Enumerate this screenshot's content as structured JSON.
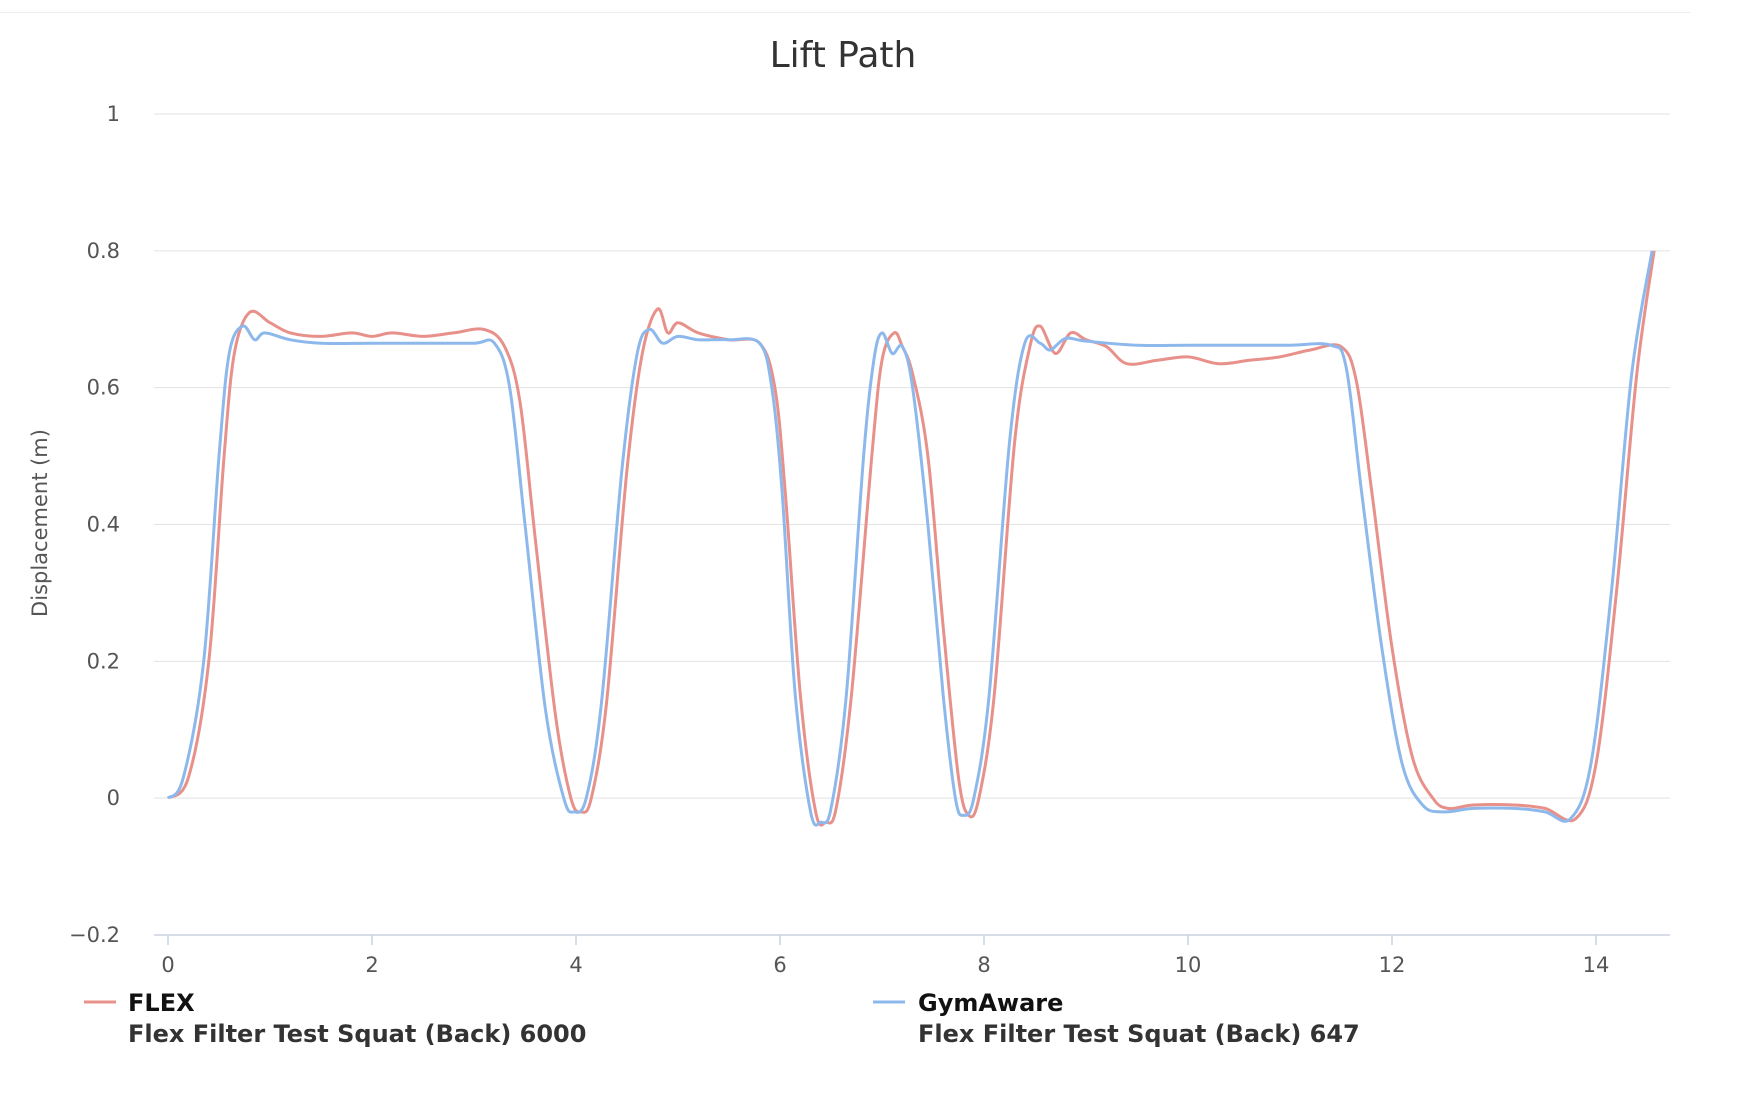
{
  "chart_data": {
    "type": "line",
    "title": "Lift Path",
    "xlabel": "",
    "ylabel": "Displacement (m)",
    "xlim": [
      0,
      14.6
    ],
    "ylim": [
      -0.2,
      1
    ],
    "x_ticks": [
      "0",
      "2",
      "4",
      "6",
      "8",
      "10",
      "12",
      "14"
    ],
    "y_ticks": [
      "−0.2",
      "0",
      "0.2",
      "0.4",
      "0.6",
      "0.8",
      "1"
    ],
    "grid": true,
    "legend": "bottom",
    "series": [
      {
        "name": "FLEX",
        "subtitle": "Flex Filter Test Squat (Back) 6000",
        "color": "#e8908a",
        "points": [
          [
            0,
            0
          ],
          [
            0.2,
            0.03
          ],
          [
            0.4,
            0.2
          ],
          [
            0.55,
            0.5
          ],
          [
            0.65,
            0.65
          ],
          [
            0.8,
            0.71
          ],
          [
            1.0,
            0.695
          ],
          [
            1.2,
            0.68
          ],
          [
            1.5,
            0.675
          ],
          [
            1.8,
            0.68
          ],
          [
            2.0,
            0.675
          ],
          [
            2.2,
            0.68
          ],
          [
            2.5,
            0.675
          ],
          [
            2.8,
            0.68
          ],
          [
            3.1,
            0.685
          ],
          [
            3.3,
            0.66
          ],
          [
            3.45,
            0.58
          ],
          [
            3.6,
            0.38
          ],
          [
            3.8,
            0.12
          ],
          [
            3.95,
            0.0
          ],
          [
            4.05,
            -0.02
          ],
          [
            4.15,
            0.0
          ],
          [
            4.3,
            0.14
          ],
          [
            4.5,
            0.48
          ],
          [
            4.65,
            0.65
          ],
          [
            4.8,
            0.715
          ],
          [
            4.9,
            0.68
          ],
          [
            5.0,
            0.695
          ],
          [
            5.2,
            0.68
          ],
          [
            5.5,
            0.67
          ],
          [
            5.8,
            0.665
          ],
          [
            5.95,
            0.6
          ],
          [
            6.05,
            0.45
          ],
          [
            6.2,
            0.15
          ],
          [
            6.35,
            -0.02
          ],
          [
            6.45,
            -0.035
          ],
          [
            6.55,
            -0.015
          ],
          [
            6.7,
            0.15
          ],
          [
            6.9,
            0.5
          ],
          [
            7.0,
            0.64
          ],
          [
            7.12,
            0.68
          ],
          [
            7.2,
            0.66
          ],
          [
            7.3,
            0.62
          ],
          [
            7.45,
            0.5
          ],
          [
            7.6,
            0.25
          ],
          [
            7.75,
            0.03
          ],
          [
            7.85,
            -0.025
          ],
          [
            7.95,
            0.0
          ],
          [
            8.1,
            0.15
          ],
          [
            8.3,
            0.52
          ],
          [
            8.45,
            0.66
          ],
          [
            8.55,
            0.69
          ],
          [
            8.7,
            0.65
          ],
          [
            8.85,
            0.68
          ],
          [
            9.0,
            0.67
          ],
          [
            9.2,
            0.66
          ],
          [
            9.4,
            0.635
          ],
          [
            9.7,
            0.64
          ],
          [
            10.0,
            0.645
          ],
          [
            10.3,
            0.635
          ],
          [
            10.6,
            0.64
          ],
          [
            10.9,
            0.645
          ],
          [
            11.2,
            0.655
          ],
          [
            11.5,
            0.66
          ],
          [
            11.65,
            0.61
          ],
          [
            11.8,
            0.45
          ],
          [
            12.0,
            0.22
          ],
          [
            12.2,
            0.06
          ],
          [
            12.4,
            0.0
          ],
          [
            12.55,
            -0.015
          ],
          [
            12.8,
            -0.01
          ],
          [
            13.2,
            -0.01
          ],
          [
            13.5,
            -0.015
          ],
          [
            13.8,
            -0.03
          ],
          [
            14.0,
            0.05
          ],
          [
            14.2,
            0.3
          ],
          [
            14.4,
            0.62
          ],
          [
            14.57,
            0.8
          ]
        ]
      },
      {
        "name": "GymAware",
        "subtitle": "Flex Filter Test Squat (Back) 647",
        "color": "#8db8ec",
        "points": [
          [
            0,
            0
          ],
          [
            0.15,
            0.03
          ],
          [
            0.35,
            0.2
          ],
          [
            0.5,
            0.5
          ],
          [
            0.6,
            0.65
          ],
          [
            0.73,
            0.69
          ],
          [
            0.85,
            0.67
          ],
          [
            0.95,
            0.68
          ],
          [
            1.2,
            0.67
          ],
          [
            1.5,
            0.665
          ],
          [
            2.0,
            0.665
          ],
          [
            2.5,
            0.665
          ],
          [
            3.0,
            0.665
          ],
          [
            3.2,
            0.665
          ],
          [
            3.35,
            0.6
          ],
          [
            3.5,
            0.4
          ],
          [
            3.7,
            0.13
          ],
          [
            3.88,
            0.0
          ],
          [
            3.98,
            -0.02
          ],
          [
            4.1,
            0.0
          ],
          [
            4.25,
            0.14
          ],
          [
            4.45,
            0.48
          ],
          [
            4.6,
            0.65
          ],
          [
            4.72,
            0.685
          ],
          [
            4.85,
            0.665
          ],
          [
            5.0,
            0.675
          ],
          [
            5.2,
            0.67
          ],
          [
            5.5,
            0.67
          ],
          [
            5.8,
            0.665
          ],
          [
            5.92,
            0.6
          ],
          [
            6.02,
            0.45
          ],
          [
            6.15,
            0.15
          ],
          [
            6.3,
            -0.02
          ],
          [
            6.4,
            -0.035
          ],
          [
            6.5,
            -0.015
          ],
          [
            6.65,
            0.15
          ],
          [
            6.82,
            0.5
          ],
          [
            6.92,
            0.64
          ],
          [
            7.0,
            0.68
          ],
          [
            7.1,
            0.65
          ],
          [
            7.2,
            0.66
          ],
          [
            7.3,
            0.6
          ],
          [
            7.45,
            0.4
          ],
          [
            7.6,
            0.15
          ],
          [
            7.72,
            0.0
          ],
          [
            7.8,
            -0.025
          ],
          [
            7.9,
            0.0
          ],
          [
            8.05,
            0.15
          ],
          [
            8.25,
            0.52
          ],
          [
            8.4,
            0.665
          ],
          [
            8.55,
            0.665
          ],
          [
            8.65,
            0.655
          ],
          [
            8.8,
            0.672
          ],
          [
            9.0,
            0.668
          ],
          [
            9.5,
            0.662
          ],
          [
            10.0,
            0.662
          ],
          [
            10.5,
            0.662
          ],
          [
            11.0,
            0.662
          ],
          [
            11.4,
            0.662
          ],
          [
            11.55,
            0.63
          ],
          [
            11.7,
            0.45
          ],
          [
            11.9,
            0.22
          ],
          [
            12.1,
            0.05
          ],
          [
            12.3,
            -0.01
          ],
          [
            12.5,
            -0.02
          ],
          [
            12.8,
            -0.015
          ],
          [
            13.2,
            -0.015
          ],
          [
            13.5,
            -0.02
          ],
          [
            13.75,
            -0.03
          ],
          [
            13.95,
            0.05
          ],
          [
            14.15,
            0.3
          ],
          [
            14.35,
            0.62
          ],
          [
            14.55,
            0.8
          ]
        ]
      }
    ]
  }
}
